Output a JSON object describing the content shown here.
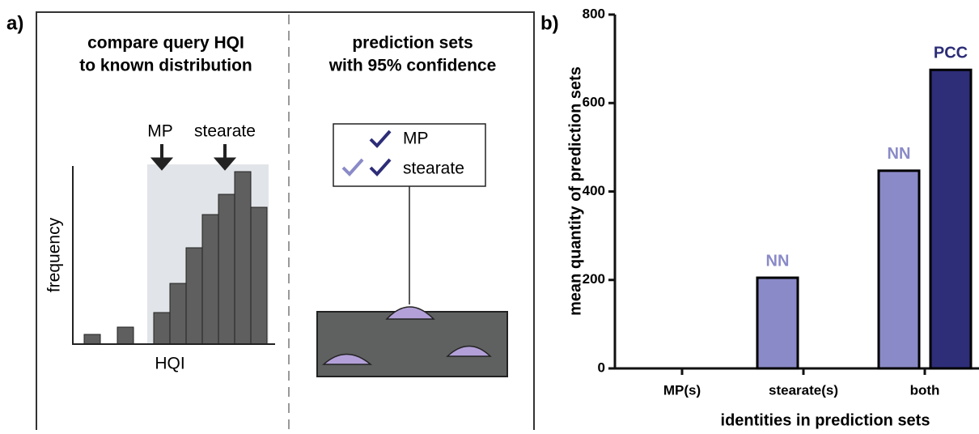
{
  "panel_a": {
    "label": "a)",
    "left_title_1": "compare query HQI",
    "left_title_2": "to known distribution",
    "right_title_1": "prediction sets",
    "right_title_2": "with 95% confidence",
    "arrow_1": "MP",
    "arrow_2": "stearate",
    "y_axis": "frequency",
    "x_axis": "HQI",
    "set_item_1": "MP",
    "set_item_2": "stearate"
  },
  "chart_data": {
    "type": "bar",
    "label": "b)",
    "x_label": "identities in prediction sets",
    "y_label": "mean quantity of prediction sets",
    "categories": [
      "MP(s)",
      "stearate(s)",
      "both"
    ],
    "series": [
      {
        "name": "NN",
        "color": "#8a8ac8",
        "values": [
          null,
          205,
          447
        ]
      },
      {
        "name": "PCC",
        "color": "#2d2d78",
        "values": [
          null,
          null,
          675
        ]
      }
    ],
    "ylim": [
      0,
      800
    ],
    "yticks": [
      0,
      200,
      400,
      600,
      800
    ]
  }
}
